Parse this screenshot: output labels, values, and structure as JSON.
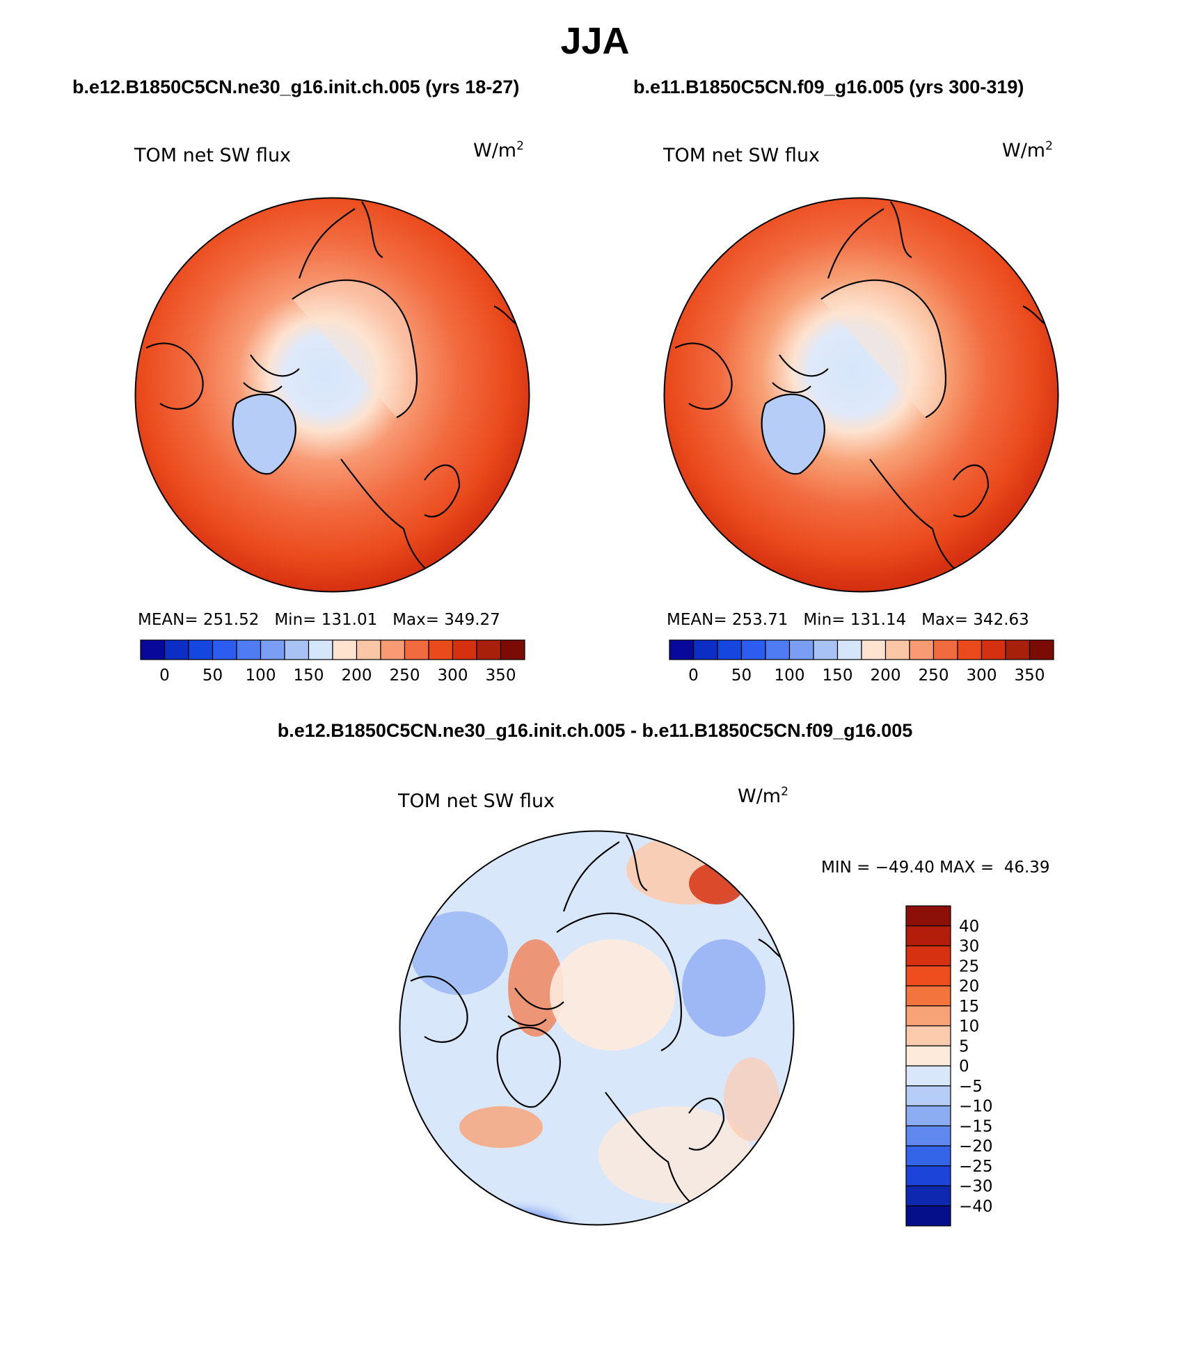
{
  "figure": {
    "title": "JJA"
  },
  "panels": [
    {
      "case_title": "b.e12.B1850C5CN.ne30_g16.init.ch.005 (yrs 18-27)",
      "field_label": "TOM net SW flux",
      "units": "W/m",
      "units_exp": "2",
      "stats": {
        "mean_label": "MEAN=",
        "mean": "251.52",
        "min_label": "Min=",
        "min": "131.01",
        "max_label": "Max=",
        "max": "349.27"
      }
    },
    {
      "case_title": "b.e11.B1850C5CN.f09_g16.005 (yrs 300-319)",
      "field_label": "TOM net SW flux",
      "units": "W/m",
      "units_exp": "2",
      "stats": {
        "mean_label": "MEAN=",
        "mean": "253.71",
        "min_label": "Min=",
        "min": "131.14",
        "max_label": "Max=",
        "max": "342.63"
      }
    }
  ],
  "diff_panel": {
    "case_title": "b.e12.B1850C5CN.ne30_g16.init.ch.005 - b.e11.B1850C5CN.f09_g16.005",
    "field_label": "TOM net SW flux",
    "units": "W/m",
    "units_exp": "2",
    "stats": {
      "min_label": "MIN =",
      "min": "−49.40",
      "max_label": "MAX =",
      "max": "46.39"
    }
  },
  "colorbar_abs": {
    "colors": [
      "#08089a",
      "#0c2ec4",
      "#1546e0",
      "#2d5cf0",
      "#4f7cf2",
      "#7a9ef4",
      "#a9c2f6",
      "#d6e6fa",
      "#fde3d0",
      "#fbc6a6",
      "#f89a74",
      "#f26b40",
      "#ea4a1c",
      "#d53010",
      "#a8200a",
      "#7a0c05"
    ],
    "labels": [
      "0",
      "50",
      "100",
      "150",
      "200",
      "250",
      "300",
      "350"
    ]
  },
  "colorbar_diff": {
    "colors": [
      "#8c1008",
      "#b31e0c",
      "#d63212",
      "#ee4e1e",
      "#f4743e",
      "#f8a277",
      "#fccbae",
      "#fdeadb",
      "#d9e7fb",
      "#b5cdf7",
      "#8dadf3",
      "#5f89ef",
      "#3464e8",
      "#1c44d8",
      "#0e28b0",
      "#050f8a"
    ],
    "labels": [
      "40",
      "30",
      "25",
      "20",
      "15",
      "10",
      "5",
      "0",
      "−5",
      "−10",
      "−15",
      "−20",
      "−25",
      "−30",
      "−40"
    ]
  }
}
